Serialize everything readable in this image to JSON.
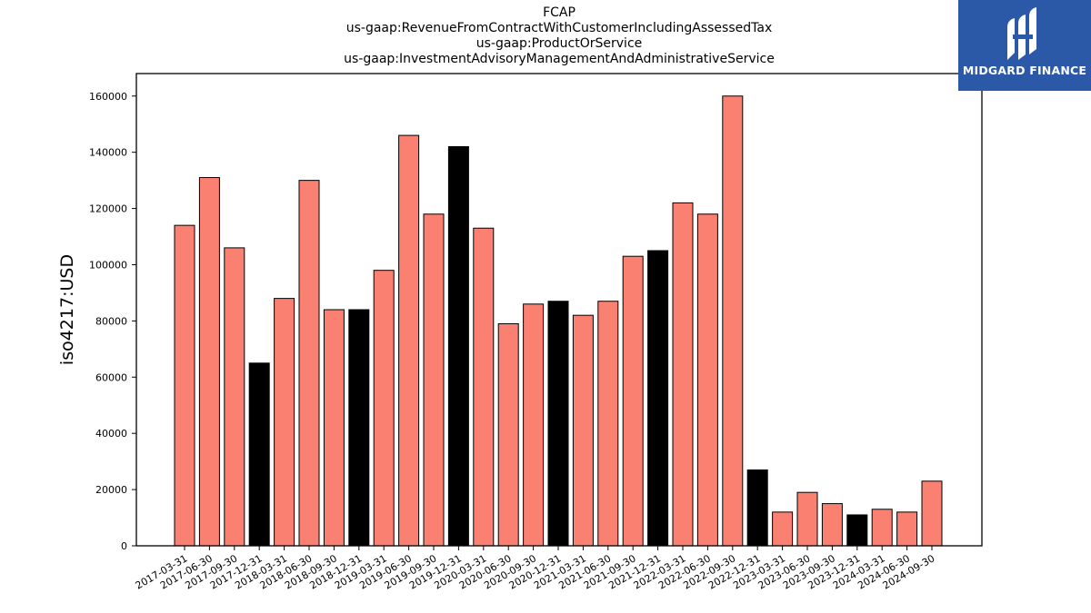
{
  "colors": {
    "bar_default": "#fa8072",
    "bar_highlight": "#000000",
    "logo_bg": "#2b59a8"
  },
  "logo": {
    "text": "MIDGARD FINANCE",
    "icon": "midgard-logo-icon"
  },
  "chart_data": {
    "type": "bar",
    "title_lines": [
      "FCAP",
      "us-gaap:RevenueFromContractWithCustomerIncludingAssessedTax",
      "us-gaap:ProductOrService",
      "us-gaap:InvestmentAdvisoryManagementAndAdministrativeService"
    ],
    "xlabel": "",
    "ylabel": "iso4217:USD",
    "ylim": [
      0,
      168000
    ],
    "yticks": [
      0,
      20000,
      40000,
      60000,
      80000,
      100000,
      120000,
      140000,
      160000
    ],
    "grid": false,
    "categories": [
      "2017-03-31",
      "2017-06-30",
      "2017-09-30",
      "2017-12-31",
      "2018-03-31",
      "2018-06-30",
      "2018-09-30",
      "2018-12-31",
      "2019-03-31",
      "2019-06-30",
      "2019-09-30",
      "2019-12-31",
      "2020-03-31",
      "2020-06-30",
      "2020-09-30",
      "2020-12-31",
      "2021-03-31",
      "2021-06-30",
      "2021-09-30",
      "2021-12-31",
      "2022-03-31",
      "2022-06-30",
      "2022-09-30",
      "2022-12-31",
      "2023-03-31",
      "2023-06-30",
      "2023-09-30",
      "2023-12-31",
      "2024-03-31",
      "2024-06-30",
      "2024-09-30"
    ],
    "values": [
      114000,
      131000,
      106000,
      65000,
      88000,
      130000,
      84000,
      84000,
      98000,
      146000,
      118000,
      142000,
      113000,
      79000,
      86000,
      87000,
      82000,
      87000,
      103000,
      105000,
      122000,
      118000,
      160000,
      27000,
      12000,
      19000,
      15000,
      11000,
      13000,
      12000,
      23000
    ],
    "highlight": [
      false,
      false,
      false,
      true,
      false,
      false,
      false,
      true,
      false,
      false,
      false,
      true,
      false,
      false,
      false,
      true,
      false,
      false,
      false,
      true,
      false,
      false,
      false,
      true,
      false,
      false,
      false,
      true,
      false,
      false,
      false
    ]
  }
}
